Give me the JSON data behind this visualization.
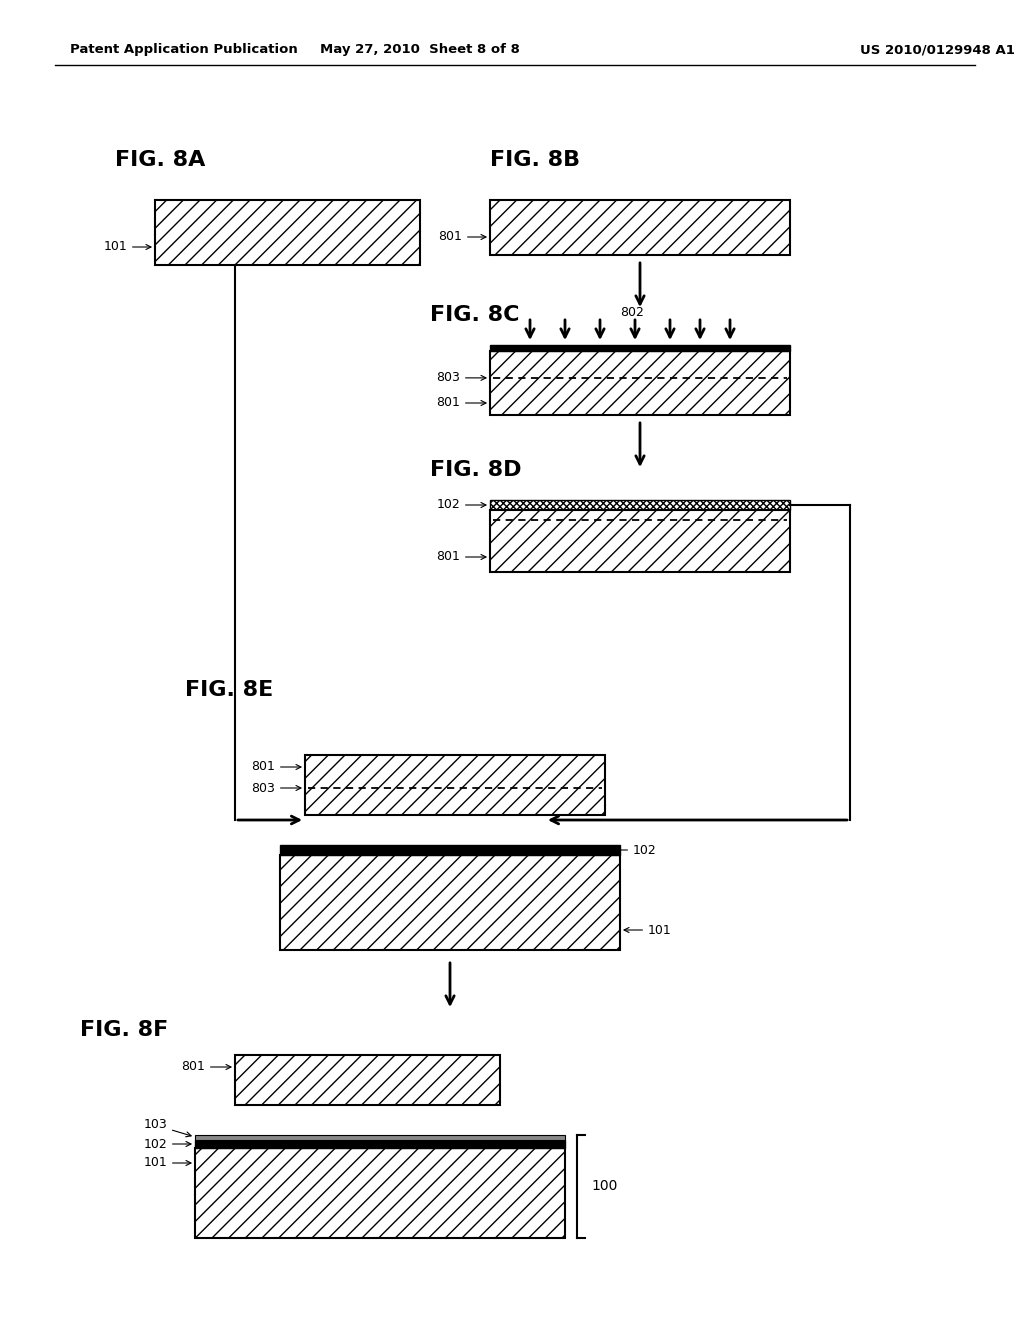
{
  "header_left": "Patent Application Publication",
  "header_center": "May 27, 2010  Sheet 8 of 8",
  "header_right": "US 2010/0129948 A1",
  "background": "#ffffff"
}
